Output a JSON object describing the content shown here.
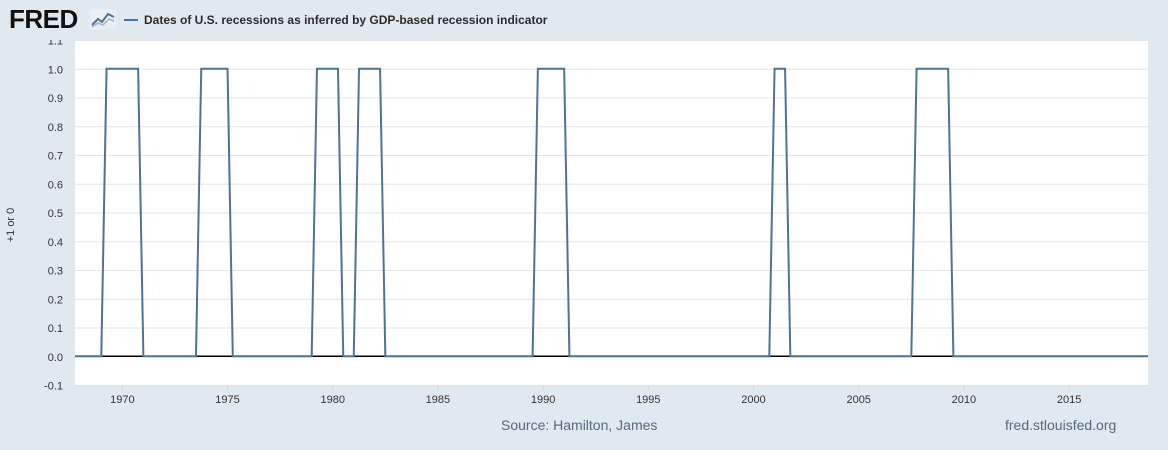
{
  "header": {
    "logo_text": "FRED",
    "logo_icon": "line-chart-icon",
    "legend_label": "Dates of U.S. recessions as inferred by GDP-based recession indicator",
    "legend_color": "#4572a7"
  },
  "footer": {
    "source": "Source: Hamilton, James",
    "site": "fred.stlouisfed.org"
  },
  "colors": {
    "series": "#4f7394",
    "plot_background": "#ffffff",
    "page_background": "#e1e9f0",
    "grid": "#e6e6e6",
    "zero_line": "#000000"
  },
  "chart_data": {
    "type": "line",
    "title": "",
    "xlabel": "",
    "ylabel": "+1 or 0",
    "xlim": [
      1967.75,
      2018.75
    ],
    "ylim": [
      -0.1,
      1.1
    ],
    "y_ticks": [
      "-0.1",
      "0.0",
      "0.1",
      "0.2",
      "0.3",
      "0.4",
      "0.5",
      "0.6",
      "0.7",
      "0.8",
      "0.9",
      "1.0",
      "1.1"
    ],
    "x_ticks": [
      "1970",
      "1975",
      "1980",
      "1985",
      "1990",
      "1995",
      "2000",
      "2005",
      "2010",
      "2015"
    ],
    "grid": true,
    "legend": "top-left",
    "series": [
      {
        "name": "Dates of U.S. recessions as inferred by GDP-based recession indicator",
        "points": [
          [
            1967.75,
            0
          ],
          [
            1969.0,
            0
          ],
          [
            1969.25,
            1
          ],
          [
            1970.75,
            1
          ],
          [
            1971.0,
            0
          ],
          [
            1973.5,
            0
          ],
          [
            1973.75,
            1
          ],
          [
            1975.0,
            1
          ],
          [
            1975.25,
            0
          ],
          [
            1979.0,
            0
          ],
          [
            1979.25,
            1
          ],
          [
            1980.25,
            1
          ],
          [
            1980.5,
            0
          ],
          [
            1981.0,
            0
          ],
          [
            1981.25,
            1
          ],
          [
            1982.25,
            1
          ],
          [
            1982.5,
            0
          ],
          [
            1989.5,
            0
          ],
          [
            1989.75,
            1
          ],
          [
            1991.0,
            1
          ],
          [
            1991.25,
            0
          ],
          [
            2000.75,
            0
          ],
          [
            2001.0,
            1
          ],
          [
            2001.5,
            1
          ],
          [
            2001.75,
            0
          ],
          [
            2007.5,
            0
          ],
          [
            2007.75,
            1
          ],
          [
            2009.25,
            1
          ],
          [
            2009.5,
            0
          ],
          [
            2018.75,
            0
          ]
        ]
      }
    ]
  }
}
